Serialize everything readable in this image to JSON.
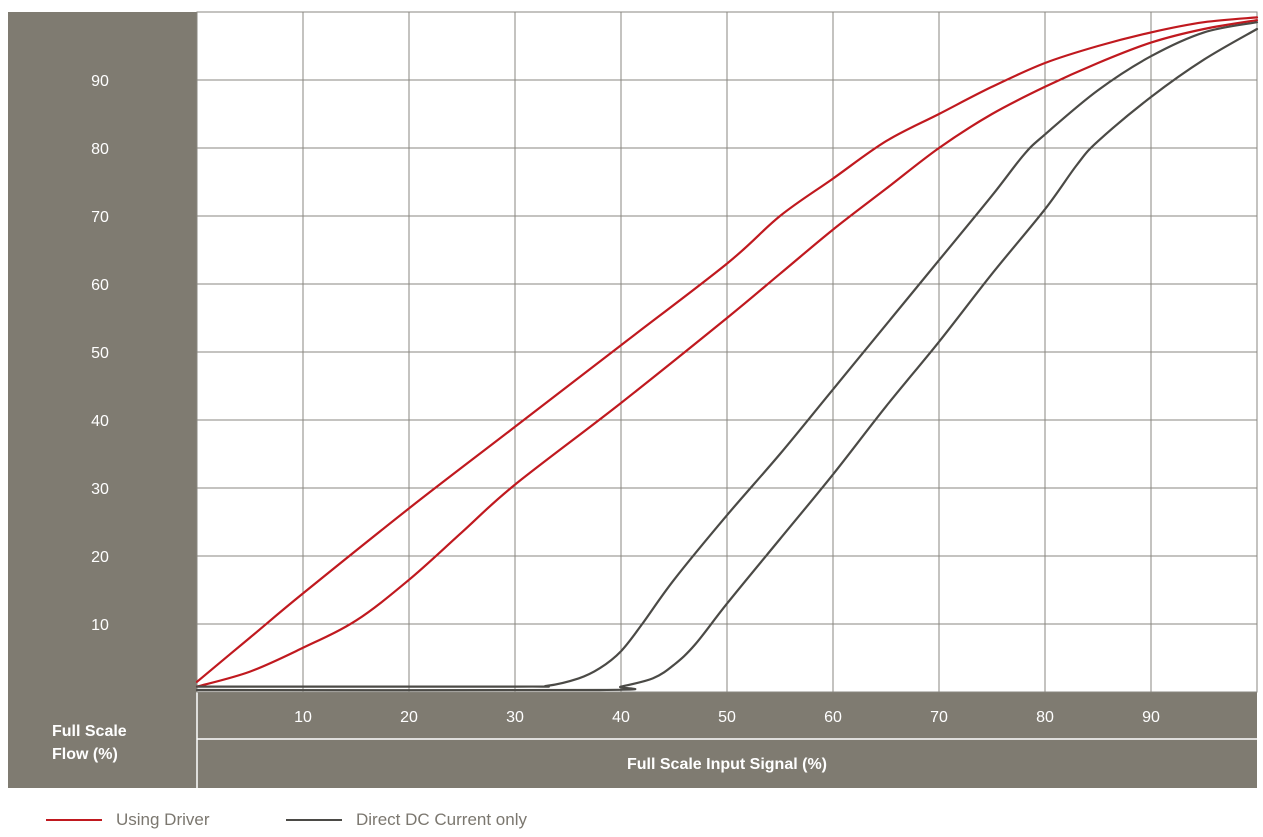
{
  "chart_data": {
    "type": "line",
    "xlabel": "Full Scale Input Signal (%)",
    "ylabel_line1": "Full Scale",
    "ylabel_line2": "Flow (%)",
    "xlim": [
      0,
      100
    ],
    "ylim": [
      0,
      100
    ],
    "x_ticks": [
      "10",
      "20",
      "30",
      "40",
      "50",
      "60",
      "70",
      "80",
      "90"
    ],
    "y_ticks": [
      "10",
      "20",
      "30",
      "40",
      "50",
      "60",
      "70",
      "80",
      "90"
    ],
    "grid": true,
    "legend_position": "bottom-left",
    "colors": {
      "driver": "#c0191f",
      "direct": "#4b4a46",
      "panel": "#7f7b71",
      "grid": "#8a8780"
    },
    "legend": [
      {
        "label": "Using Driver",
        "color": "#c0191f"
      },
      {
        "label": "Direct DC Current only",
        "color": "#4b4a46"
      }
    ],
    "series": [
      {
        "group": "Using Driver",
        "color": "#c0191f",
        "points": [
          [
            0,
            1.5
          ],
          [
            5,
            8
          ],
          [
            10,
            14.5
          ],
          [
            20,
            27
          ],
          [
            30,
            39
          ],
          [
            40,
            51
          ],
          [
            50,
            63
          ],
          [
            55,
            70
          ],
          [
            60,
            75.5
          ],
          [
            65,
            81
          ],
          [
            70,
            85
          ],
          [
            75,
            89
          ],
          [
            80,
            92.5
          ],
          [
            85,
            95
          ],
          [
            90,
            97
          ],
          [
            95,
            98.5
          ],
          [
            100,
            99.2
          ]
        ]
      },
      {
        "group": "Using Driver",
        "color": "#c0191f",
        "points": [
          [
            0,
            0.8
          ],
          [
            5,
            3
          ],
          [
            10,
            6.5
          ],
          [
            15,
            10.5
          ],
          [
            20,
            16.5
          ],
          [
            25,
            23.5
          ],
          [
            30,
            30.5
          ],
          [
            40,
            42.5
          ],
          [
            50,
            55
          ],
          [
            55,
            61.5
          ],
          [
            60,
            68
          ],
          [
            65,
            74
          ],
          [
            70,
            80
          ],
          [
            75,
            85
          ],
          [
            80,
            89
          ],
          [
            85,
            92.5
          ],
          [
            90,
            95.5
          ],
          [
            95,
            97.5
          ],
          [
            100,
            98.8
          ]
        ]
      },
      {
        "group": "Direct DC Current only",
        "color": "#4b4a46",
        "points": [
          [
            0,
            0.8
          ],
          [
            30,
            0.8
          ],
          [
            33,
            0.9
          ],
          [
            36,
            2
          ],
          [
            38,
            3.5
          ],
          [
            40,
            6
          ],
          [
            42,
            10
          ],
          [
            45,
            16.5
          ],
          [
            50,
            26
          ],
          [
            55,
            35
          ],
          [
            60,
            44.5
          ],
          [
            65,
            54
          ],
          [
            70,
            63.5
          ],
          [
            75,
            73
          ],
          [
            78,
            79
          ],
          [
            80,
            82
          ],
          [
            85,
            88.5
          ],
          [
            90,
            93.5
          ],
          [
            95,
            97
          ],
          [
            100,
            98.5
          ]
        ]
      },
      {
        "group": "Direct DC Current only",
        "color": "#4b4a46",
        "points": [
          [
            0,
            0.3
          ],
          [
            38,
            0.3
          ],
          [
            40,
            0.8
          ],
          [
            43,
            2
          ],
          [
            45,
            4
          ],
          [
            47,
            7
          ],
          [
            50,
            13
          ],
          [
            55,
            22.5
          ],
          [
            60,
            32
          ],
          [
            65,
            42
          ],
          [
            70,
            51.5
          ],
          [
            75,
            61.5
          ],
          [
            80,
            71
          ],
          [
            83,
            77.5
          ],
          [
            85,
            81
          ],
          [
            90,
            87.5
          ],
          [
            95,
            93
          ],
          [
            100,
            97.5
          ]
        ]
      }
    ]
  }
}
